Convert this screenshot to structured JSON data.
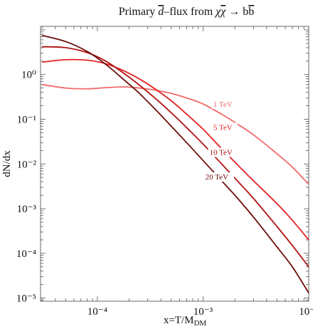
{
  "chart_data": {
    "type": "line",
    "title": "Primary d̄–flux from χχ̄ → bb̄",
    "xlabel": "x=T/M",
    "xlabel_sub": "DM",
    "ylabel": "dN/dx",
    "x_scale": "log",
    "y_scale": "log",
    "xlim": [
      2.9e-05,
      0.01
    ],
    "ylim": [
      8.5e-06,
      12
    ],
    "grid": false,
    "x_ticks": [
      {
        "value": 0.0001,
        "label": "10⁻⁴"
      },
      {
        "value": 0.001,
        "label": "10⁻³"
      },
      {
        "value": 0.01,
        "label": "10⁻²"
      }
    ],
    "y_ticks": [
      {
        "value": 1,
        "label": "10⁰"
      },
      {
        "value": 0.1,
        "label": "10⁻¹"
      },
      {
        "value": 0.01,
        "label": "10⁻²"
      },
      {
        "value": 0.001,
        "label": "10⁻³"
      },
      {
        "value": 0.0001,
        "label": "10⁻⁴"
      },
      {
        "value": 1e-05,
        "label": "10⁻⁵"
      }
    ],
    "series": [
      {
        "name": "1 TeV",
        "color": "#f26b6b",
        "x": [
          3e-05,
          5e-05,
          8e-05,
          0.00012,
          0.00018,
          0.00025,
          0.00035,
          0.0005,
          0.0007,
          0.001,
          0.0015,
          0.002,
          0.003,
          0.005,
          0.007,
          0.01
        ],
        "y": [
          0.6,
          0.5,
          0.48,
          0.51,
          0.53,
          0.5,
          0.45,
          0.38,
          0.3,
          0.22,
          0.13,
          0.085,
          0.045,
          0.017,
          0.0085,
          0.0035
        ]
      },
      {
        "name": "5 TeV",
        "color": "#e32121",
        "x": [
          3e-05,
          5e-05,
          8e-05,
          0.00012,
          0.00018,
          0.00025,
          0.00035,
          0.0005,
          0.0007,
          0.001,
          0.0015,
          0.002,
          0.003,
          0.005,
          0.007,
          0.01
        ],
        "y": [
          1.9,
          2.15,
          2.1,
          1.75,
          1.2,
          0.8,
          0.48,
          0.26,
          0.13,
          0.06,
          0.022,
          0.011,
          0.0042,
          0.0013,
          0.00055,
          0.0002
        ]
      },
      {
        "name": "10 TeV",
        "color": "#b31212",
        "x": [
          3e-05,
          5e-05,
          8e-05,
          0.00012,
          0.00018,
          0.00025,
          0.00035,
          0.0005,
          0.0007,
          0.001,
          0.0015,
          0.002,
          0.003,
          0.005,
          0.007,
          0.01
        ],
        "y": [
          4.2,
          4.0,
          3.1,
          2.0,
          1.05,
          0.58,
          0.3,
          0.14,
          0.065,
          0.028,
          0.01,
          0.0048,
          0.0017,
          0.0004,
          0.00015,
          5e-05
        ]
      },
      {
        "name": "20 TeV",
        "color": "#6e0d0d",
        "x": [
          3e-05,
          5e-05,
          8e-05,
          0.00012,
          0.00018,
          0.00025,
          0.00035,
          0.0005,
          0.0007,
          0.001,
          0.0015,
          0.002,
          0.003,
          0.005,
          0.007,
          0.01
        ],
        "y": [
          7.5,
          5.5,
          3.3,
          1.7,
          0.75,
          0.38,
          0.17,
          0.07,
          0.03,
          0.012,
          0.0042,
          0.002,
          0.00065,
          0.00014,
          5e-05,
          1.3e-05
        ]
      }
    ],
    "annotations": [
      {
        "text": "1 TeV",
        "x": 0.00125,
        "y": 0.19,
        "series": "1 TeV"
      },
      {
        "text": "5 TeV",
        "x": 0.00125,
        "y": 0.058,
        "series": "5 TeV"
      },
      {
        "text": "10 TeV",
        "x": 0.00115,
        "y": 0.016,
        "series": "10 TeV"
      },
      {
        "text": "20 TeV",
        "x": 0.00105,
        "y": 0.0045,
        "series": "20 TeV"
      }
    ]
  }
}
